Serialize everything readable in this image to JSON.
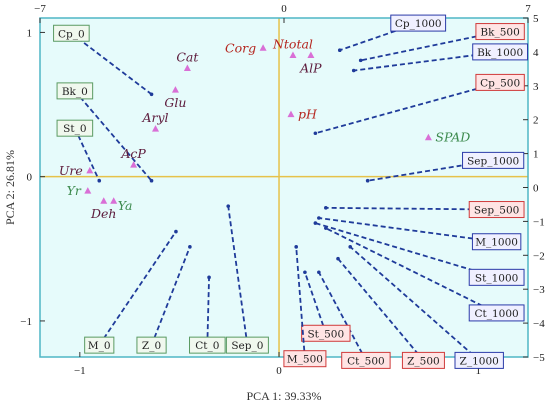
{
  "chart_data": {
    "type": "scatter",
    "xlabel": "PCA 1: 39.33%",
    "ylabel": "PCA 2: 26.81%",
    "xlim": [
      -1.2,
      1.25
    ],
    "ylim": [
      -1.25,
      1.1
    ],
    "x_ticks": [
      -1,
      0,
      1
    ],
    "y_ticks": [
      -1,
      0,
      1
    ],
    "x2_lim": [
      -7,
      7
    ],
    "x2_ticks": [
      -7,
      0,
      7
    ],
    "y2_lim": [
      -5,
      5
    ],
    "y2_ticks": [
      -5,
      -4,
      -3,
      -2,
      -1,
      0,
      1,
      2,
      3,
      4,
      5
    ],
    "grid": false,
    "colors": {
      "background": "#e6fbfb",
      "frame": "#4fb6c5",
      "zero_line": "#e6c24a",
      "dashed": "#1f3b9a",
      "brown": "#5c1a3b",
      "red": "#b5261f",
      "green": "#3c8a4d",
      "point": "#d96fd6",
      "box_red_border": "#d03a3a",
      "box_red_fill": "#ffe4e4",
      "box_blue_border": "#2a3aa8",
      "box_blue_fill": "#f0f0ff",
      "box_green_border": "#5a9a62",
      "box_green_fill": "#f0f8ee"
    },
    "variables": [
      {
        "label": "Corg",
        "x": -0.08,
        "y": 0.89,
        "color": "red",
        "pos": "left"
      },
      {
        "label": "Ntotal",
        "x": 0.07,
        "y": 0.84,
        "color": "red",
        "pos": "above"
      },
      {
        "label": "AlP",
        "x": 0.16,
        "y": 0.84,
        "color": "brown",
        "pos": "below"
      },
      {
        "label": "Cat",
        "x": -0.46,
        "y": 0.75,
        "color": "brown",
        "pos": "above"
      },
      {
        "label": "Glu",
        "x": -0.52,
        "y": 0.6,
        "color": "brown",
        "pos": "below"
      },
      {
        "label": "pH",
        "x": 0.06,
        "y": 0.43,
        "color": "red",
        "pos": "right"
      },
      {
        "label": "Aryl",
        "x": -0.62,
        "y": 0.33,
        "color": "brown",
        "pos": "above"
      },
      {
        "label": "SPAD",
        "x": 0.75,
        "y": 0.27,
        "color": "green",
        "pos": "right"
      },
      {
        "label": "AcP",
        "x": -0.73,
        "y": 0.08,
        "color": "brown",
        "pos": "above"
      },
      {
        "label": "Ure",
        "x": -0.95,
        "y": 0.04,
        "color": "brown",
        "pos": "left"
      },
      {
        "label": "Yr",
        "x": -0.96,
        "y": -0.1,
        "color": "green",
        "pos": "left"
      },
      {
        "label": "Ya",
        "x": -0.83,
        "y": -0.17,
        "color": "green",
        "pos": "below-right"
      },
      {
        "label": "Deh",
        "x": -0.88,
        "y": -0.17,
        "color": "brown",
        "pos": "below"
      }
    ],
    "samples": [
      {
        "label": "Cp_0",
        "group": "green",
        "x2": -6.1,
        "y2": 4.55,
        "px": -3.8,
        "py": 2.75
      },
      {
        "label": "Bk_0",
        "group": "green",
        "x2": -6.0,
        "y2": 2.85,
        "px": -3.8,
        "py": 0.2
      },
      {
        "label": "St_0",
        "group": "green",
        "x2": -6.0,
        "y2": 1.75,
        "px": -5.3,
        "py": 0.2
      },
      {
        "label": "M_0",
        "group": "green",
        "x2": -5.3,
        "y2": -4.65,
        "px": -3.1,
        "py": -1.3
      },
      {
        "label": "Z_0",
        "group": "green",
        "x2": -3.8,
        "y2": -4.65,
        "px": -2.7,
        "py": -1.75
      },
      {
        "label": "Ct_0",
        "group": "green",
        "x2": -2.2,
        "y2": -4.65,
        "px": -2.15,
        "py": -2.65
      },
      {
        "label": "Sep_0",
        "group": "green",
        "x2": -1.05,
        "y2": -4.65,
        "px": -1.6,
        "py": -0.55
      },
      {
        "label": "Cp_1000",
        "group": "blue",
        "x2": 3.85,
        "y2": 4.85,
        "px": 1.6,
        "py": 4.05
      },
      {
        "label": "Bk_500",
        "group": "red",
        "x2": 6.2,
        "y2": 4.6,
        "px": 2.2,
        "py": 3.75
      },
      {
        "label": "Bk_1000",
        "group": "blue",
        "x2": 6.2,
        "y2": 4.0,
        "px": 2.0,
        "py": 3.45
      },
      {
        "label": "Cp_500",
        "group": "red",
        "x2": 6.2,
        "y2": 3.1,
        "px": 0.9,
        "py": 1.6
      },
      {
        "label": "Sep_1000",
        "group": "blue",
        "x2": 6.0,
        "y2": 0.8,
        "px": 2.4,
        "py": 0.2
      },
      {
        "label": "Sep_500",
        "group": "red",
        "x2": 6.1,
        "y2": -0.65,
        "px": 1.2,
        "py": -0.6
      },
      {
        "label": "M_1000",
        "group": "blue",
        "x2": 6.1,
        "y2": -1.6,
        "px": 1.0,
        "py": -0.9
      },
      {
        "label": "St_1000",
        "group": "blue",
        "x2": 6.1,
        "y2": -2.65,
        "px": 0.9,
        "py": -1.05
      },
      {
        "label": "Ct_1000",
        "group": "blue",
        "x2": 6.1,
        "y2": -3.7,
        "px": 1.2,
        "py": -1.2
      },
      {
        "label": "Z_1000",
        "group": "blue",
        "x2": 5.6,
        "y2": -5.1,
        "px": 1.9,
        "py": -1.75
      },
      {
        "label": "Z_500",
        "group": "red",
        "x2": 4.0,
        "y2": -5.1,
        "px": 1.55,
        "py": -2.1
      },
      {
        "label": "Ct_500",
        "group": "red",
        "x2": 2.35,
        "y2": -5.1,
        "px": 1.0,
        "py": -2.5
      },
      {
        "label": "St_500",
        "group": "red",
        "x2": 1.2,
        "y2": -4.3,
        "px": 0.6,
        "py": -2.5
      },
      {
        "label": "M_500",
        "group": "red",
        "x2": 0.6,
        "y2": -5.05,
        "px": 0.35,
        "py": -1.75
      }
    ]
  }
}
